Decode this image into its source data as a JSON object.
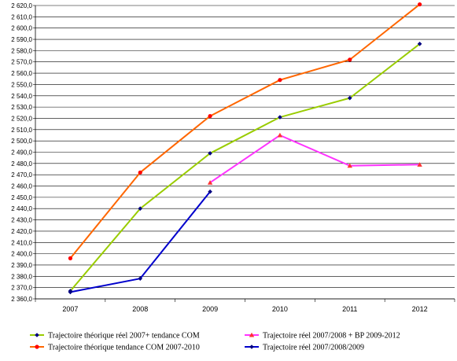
{
  "chart_data": {
    "type": "line",
    "categories": [
      "2007",
      "2008",
      "2009",
      "2010",
      "2011",
      "2012"
    ],
    "ylim": [
      2360.0,
      2620.0
    ],
    "ytick_step": 10,
    "ytick_labels": [
      "2 360,0",
      "2 370,0",
      "2 380,0",
      "2 390,0",
      "2 400,0",
      "2 410,0",
      "2 420,0",
      "2 430,0",
      "2 440,0",
      "2 450,0",
      "2 460,0",
      "2 470,0",
      "2 480,0",
      "2 490,0",
      "2 500,0",
      "2 510,0",
      "2 520,0",
      "2 530,0",
      "2 540,0",
      "2 550,0",
      "2 560,0",
      "2 570,0",
      "2 580,0",
      "2 590,0",
      "2 600,0",
      "2 610,0",
      "2 620,0"
    ],
    "grid": {
      "y": true,
      "x": false
    },
    "legend_position": "bottom",
    "series": [
      {
        "name": "Trajectoire théorique réel 2007+ tendance COM",
        "color": "#99cc00",
        "marker_color": "#000080",
        "marker": "diamond",
        "values": [
          2367,
          2440,
          2489,
          2521,
          2538,
          2586
        ]
      },
      {
        "name": "Trajectoire théorique tendance COM 2007-2010",
        "color": "#ff6600",
        "marker_color": "#ff0000",
        "marker": "circle",
        "values": [
          2396,
          2472,
          2522,
          2554,
          2572,
          2621
        ]
      },
      {
        "name": "Trajectoire réel 2007/2008 + BP 2009-2012",
        "color": "#ff33ff",
        "marker_color": "#ff3333",
        "marker": "triangle",
        "values": [
          null,
          null,
          2463,
          2505,
          2478,
          2479
        ]
      },
      {
        "name": "Trajectoire réel 2007/2008/2009",
        "color": "#0000cc",
        "marker_color": "#000080",
        "marker": "diamond",
        "values": [
          2366,
          2378,
          2455,
          null,
          null,
          null
        ]
      }
    ]
  }
}
